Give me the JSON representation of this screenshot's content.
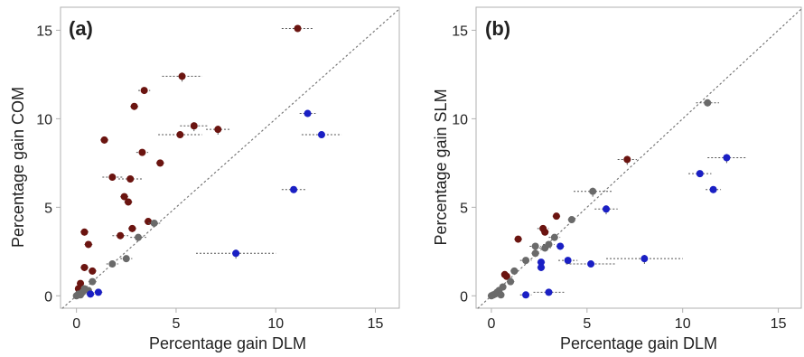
{
  "colors": {
    "red_points": "#6b1410",
    "grey_points": "#6a6a6a",
    "blue_points": "#1a1fc4",
    "error_bars": "#555555",
    "identity_line": "#777777",
    "frame": "#b0b0b0"
  },
  "chart_data": [
    {
      "type": "scatter",
      "panel_label": "(a)",
      "xlabel": "Percentage gain DLM",
      "ylabel": "Percentage gain COM",
      "xlim": [
        -0.8,
        16.2
      ],
      "ylim": [
        -0.7,
        16.3
      ],
      "xticks": [
        0,
        5,
        10,
        15
      ],
      "yticks": [
        0,
        5,
        10,
        15
      ],
      "grid": false,
      "identity_line": true,
      "series": [
        {
          "color_key": "red_points",
          "points": [
            {
              "x": 11.1,
              "y": 15.1,
              "xerr": 0.8,
              "yerr": 0.2
            },
            {
              "x": 5.3,
              "y": 12.4,
              "xerr": 1.0,
              "yerr": 0.3
            },
            {
              "x": 3.4,
              "y": 11.6,
              "xerr": 0.3,
              "yerr": 0.2
            },
            {
              "x": 2.9,
              "y": 10.7,
              "xerr": 0.2,
              "yerr": 0.2
            },
            {
              "x": 5.9,
              "y": 9.6,
              "xerr": 0.7,
              "yerr": 0.3
            },
            {
              "x": 7.1,
              "y": 9.4,
              "xerr": 0.6,
              "yerr": 0.3
            },
            {
              "x": 5.2,
              "y": 9.1,
              "xerr": 1.1,
              "yerr": 0.2
            },
            {
              "x": 1.4,
              "y": 8.8,
              "xerr": 0.2,
              "yerr": 0.2
            },
            {
              "x": 3.3,
              "y": 8.1,
              "xerr": 0.3,
              "yerr": 0.2
            },
            {
              "x": 4.2,
              "y": 7.5,
              "xerr": 0.2,
              "yerr": 0.2
            },
            {
              "x": 1.8,
              "y": 6.7,
              "xerr": 0.5,
              "yerr": 0.2
            },
            {
              "x": 2.7,
              "y": 6.6,
              "xerr": 0.6,
              "yerr": 0.2
            },
            {
              "x": 2.4,
              "y": 5.6,
              "xerr": 0.2,
              "yerr": 0.2
            },
            {
              "x": 2.6,
              "y": 5.3,
              "xerr": 0.2,
              "yerr": 0.2
            },
            {
              "x": 3.6,
              "y": 4.2,
              "xerr": 0.2,
              "yerr": 0.2
            },
            {
              "x": 2.8,
              "y": 3.8,
              "xerr": 0.2,
              "yerr": 0.2
            },
            {
              "x": 0.4,
              "y": 3.6,
              "xerr": 0.2,
              "yerr": 0.2
            },
            {
              "x": 2.2,
              "y": 3.4,
              "xerr": 0.4,
              "yerr": 0.2
            },
            {
              "x": 0.6,
              "y": 2.9,
              "xerr": 0.2,
              "yerr": 0.2
            },
            {
              "x": 0.4,
              "y": 1.6,
              "xerr": 0.2,
              "yerr": 0.2
            },
            {
              "x": 0.8,
              "y": 1.4,
              "xerr": 0.2,
              "yerr": 0.2
            },
            {
              "x": 0.2,
              "y": 0.7,
              "xerr": 0.1,
              "yerr": 0.1
            },
            {
              "x": 0.1,
              "y": 0.4,
              "xerr": 0.1,
              "yerr": 0.1
            }
          ]
        },
        {
          "color_key": "grey_points",
          "points": [
            {
              "x": 3.9,
              "y": 4.1,
              "xerr": 0.3,
              "yerr": 0.2
            },
            {
              "x": 3.1,
              "y": 3.3,
              "xerr": 0.4,
              "yerr": 0.2
            },
            {
              "x": 2.5,
              "y": 2.1,
              "xerr": 0.3,
              "yerr": 0.2
            },
            {
              "x": 1.8,
              "y": 1.8,
              "xerr": 0.3,
              "yerr": 0.2
            },
            {
              "x": 0.8,
              "y": 0.8,
              "xerr": 0.2,
              "yerr": 0.1
            },
            {
              "x": 0.4,
              "y": 0.4,
              "xerr": 0.1,
              "yerr": 0.1
            },
            {
              "x": 0.6,
              "y": 0.3,
              "xerr": 0.1,
              "yerr": 0.1
            },
            {
              "x": 0.3,
              "y": 0.2,
              "xerr": 0.1,
              "yerr": 0.1
            },
            {
              "x": 0.1,
              "y": 0.1,
              "xerr": 0.1,
              "yerr": 0.1
            },
            {
              "x": 0.0,
              "y": 0.0,
              "xerr": 0.1,
              "yerr": 0.1
            },
            {
              "x": 0.2,
              "y": 0.05,
              "xerr": 0.1,
              "yerr": 0.1
            }
          ]
        },
        {
          "color_key": "blue_points",
          "points": [
            {
              "x": 11.6,
              "y": 10.3,
              "xerr": 0.4,
              "yerr": 0.2
            },
            {
              "x": 12.3,
              "y": 9.1,
              "xerr": 1.0,
              "yerr": 0.2
            },
            {
              "x": 10.9,
              "y": 6.0,
              "xerr": 0.6,
              "yerr": 0.2
            },
            {
              "x": 8.0,
              "y": 2.4,
              "xerr": 2.0,
              "yerr": 0.3
            },
            {
              "x": 1.1,
              "y": 0.2,
              "xerr": 0.2,
              "yerr": 0.1
            },
            {
              "x": 0.7,
              "y": 0.1,
              "xerr": 0.2,
              "yerr": 0.1
            }
          ]
        }
      ]
    },
    {
      "type": "scatter",
      "panel_label": "(b)",
      "xlabel": "Percentage gain DLM",
      "ylabel": "Percentage gain SLM",
      "xlim": [
        -0.8,
        16.2
      ],
      "ylim": [
        -0.7,
        16.3
      ],
      "xticks": [
        0,
        5,
        10,
        15
      ],
      "yticks": [
        0,
        5,
        10,
        15
      ],
      "grid": false,
      "identity_line": true,
      "series": [
        {
          "color_key": "red_points",
          "points": [
            {
              "x": 7.1,
              "y": 7.7,
              "xerr": 0.5,
              "yerr": 0.3
            },
            {
              "x": 3.4,
              "y": 4.5,
              "xerr": 0.2,
              "yerr": 0.2
            },
            {
              "x": 2.7,
              "y": 3.8,
              "xerr": 0.3,
              "yerr": 0.2
            },
            {
              "x": 2.8,
              "y": 3.6,
              "xerr": 0.2,
              "yerr": 0.2
            },
            {
              "x": 1.4,
              "y": 3.2,
              "xerr": 0.2,
              "yerr": 0.2
            },
            {
              "x": 0.7,
              "y": 1.2,
              "xerr": 0.1,
              "yerr": 0.1
            },
            {
              "x": 0.8,
              "y": 1.1,
              "xerr": 0.1,
              "yerr": 0.1
            }
          ]
        },
        {
          "color_key": "grey_points",
          "points": [
            {
              "x": 11.3,
              "y": 10.9,
              "xerr": 0.6,
              "yerr": 0.2
            },
            {
              "x": 5.3,
              "y": 5.9,
              "xerr": 1.0,
              "yerr": 0.3
            },
            {
              "x": 4.2,
              "y": 4.3,
              "xerr": 0.2,
              "yerr": 0.2
            },
            {
              "x": 3.3,
              "y": 3.3,
              "xerr": 0.3,
              "yerr": 0.2
            },
            {
              "x": 2.3,
              "y": 2.8,
              "xerr": 0.3,
              "yerr": 0.2
            },
            {
              "x": 3.0,
              "y": 2.9,
              "xerr": 0.3,
              "yerr": 0.2
            },
            {
              "x": 2.8,
              "y": 2.7,
              "xerr": 0.3,
              "yerr": 0.2
            },
            {
              "x": 2.3,
              "y": 2.4,
              "xerr": 0.2,
              "yerr": 0.2
            },
            {
              "x": 1.8,
              "y": 2.0,
              "xerr": 0.3,
              "yerr": 0.2
            },
            {
              "x": 1.2,
              "y": 1.4,
              "xerr": 0.2,
              "yerr": 0.1
            },
            {
              "x": 1.0,
              "y": 0.8,
              "xerr": 0.2,
              "yerr": 0.1
            },
            {
              "x": 0.6,
              "y": 0.5,
              "xerr": 0.1,
              "yerr": 0.1
            },
            {
              "x": 0.4,
              "y": 0.3,
              "xerr": 0.1,
              "yerr": 0.1
            },
            {
              "x": 0.3,
              "y": 0.2,
              "xerr": 0.1,
              "yerr": 0.1
            },
            {
              "x": 0.2,
              "y": 0.1,
              "xerr": 0.1,
              "yerr": 0.1
            },
            {
              "x": 0.1,
              "y": 0.05,
              "xerr": 0.1,
              "yerr": 0.1
            },
            {
              "x": 0.0,
              "y": 0.0,
              "xerr": 0.1,
              "yerr": 0.1
            },
            {
              "x": 0.5,
              "y": 0.05,
              "xerr": 0.1,
              "yerr": 0.1
            }
          ]
        },
        {
          "color_key": "blue_points",
          "points": [
            {
              "x": 12.3,
              "y": 7.8,
              "xerr": 1.0,
              "yerr": 0.3
            },
            {
              "x": 10.9,
              "y": 6.9,
              "xerr": 0.6,
              "yerr": 0.2
            },
            {
              "x": 11.6,
              "y": 6.0,
              "xerr": 0.4,
              "yerr": 0.2
            },
            {
              "x": 6.0,
              "y": 4.9,
              "xerr": 0.6,
              "yerr": 0.3
            },
            {
              "x": 3.6,
              "y": 2.8,
              "xerr": 0.2,
              "yerr": 0.2
            },
            {
              "x": 2.6,
              "y": 1.9,
              "xerr": 0.2,
              "yerr": 0.2
            },
            {
              "x": 2.6,
              "y": 1.6,
              "xerr": 0.2,
              "yerr": 0.2
            },
            {
              "x": 4.0,
              "y": 2.0,
              "xerr": 0.5,
              "yerr": 0.2
            },
            {
              "x": 5.2,
              "y": 1.8,
              "xerr": 1.3,
              "yerr": 0.2
            },
            {
              "x": 8.0,
              "y": 2.1,
              "xerr": 2.0,
              "yerr": 0.3
            },
            {
              "x": 3.0,
              "y": 0.2,
              "xerr": 0.8,
              "yerr": 0.1
            },
            {
              "x": 1.8,
              "y": 0.05,
              "xerr": 0.3,
              "yerr": 0.1
            }
          ]
        }
      ]
    }
  ]
}
